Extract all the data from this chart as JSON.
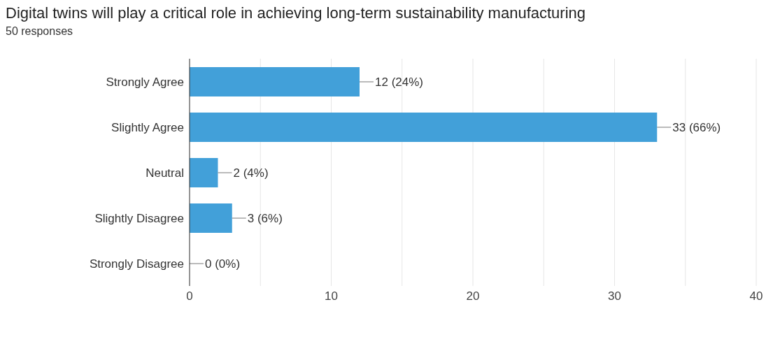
{
  "chart_data": {
    "type": "bar",
    "orientation": "horizontal",
    "title": "Digital twins will play a critical role in achieving long-term sustainability manufacturing",
    "subtitle": "50 responses",
    "categories": [
      "Strongly Agree",
      "Slightly Agree",
      "Neutral",
      "Slightly Disagree",
      "Strongly Disagree"
    ],
    "values": [
      12,
      33,
      2,
      3,
      0
    ],
    "color": "#42a0d9",
    "value_labels": [
      "12 (24%)",
      "33 (66%)",
      "2 (4%)",
      "3 (6%)",
      "0 (0%)"
    ],
    "xlim": [
      0,
      40
    ],
    "xticks": [
      0,
      {
        "value": 5,
        "label": null
      },
      10,
      {
        "value": 15,
        "label": null
      },
      20,
      {
        "value": 25,
        "label": null
      },
      30,
      {
        "value": 35,
        "label": null
      },
      40
    ],
    "grid": "x",
    "legend": false
  }
}
